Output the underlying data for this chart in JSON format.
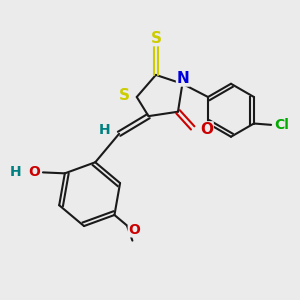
{
  "background_color": "#ebebeb",
  "bond_color": "#1a1a1a",
  "colors": {
    "S": "#cccc00",
    "N": "#0000dd",
    "O": "#cc0000",
    "H": "#008080",
    "Cl": "#00aa00",
    "C": "#1a1a1a"
  },
  "font_size": 10,
  "fig_size": [
    3.0,
    3.0
  ],
  "dpi": 100
}
